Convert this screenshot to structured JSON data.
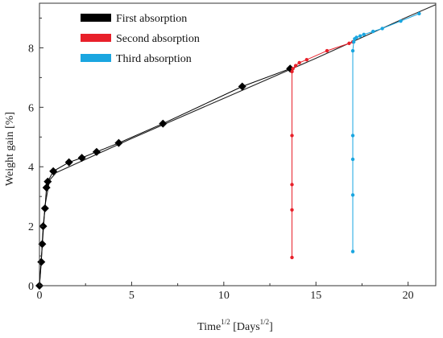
{
  "chart_data": {
    "type": "scatter",
    "title": "",
    "xlabel": {
      "main": "Time",
      "sup": "1/2",
      "bracket_open": " [Days",
      "bracket_sup": "1/2",
      "bracket_close": "]"
    },
    "ylabel": "Weight gain [%]",
    "xlim": [
      0,
      21.5
    ],
    "ylim": [
      0,
      9.5
    ],
    "xticks": [
      "0",
      "5",
      "10",
      "15",
      "20"
    ],
    "yticks": [
      "0",
      "2",
      "4",
      "6",
      "8"
    ],
    "grid": false,
    "legend_position": "top-left",
    "colors": {
      "first": "#000000",
      "second": "#e8202a",
      "third": "#1aa6e0",
      "fit": "#222222"
    },
    "fit_line": {
      "x": [
        0,
        0.3,
        0.55,
        0.9,
        5,
        10,
        15,
        20,
        21.5
      ],
      "y": [
        0,
        2.7,
        3.55,
        3.8,
        4.95,
        6.3,
        7.65,
        9.05,
        9.45
      ]
    },
    "series": [
      {
        "name": "First absorption",
        "marker": "diamond",
        "x": [
          0,
          0.1,
          0.15,
          0.2,
          0.3,
          0.38,
          0.45,
          0.75,
          1.6,
          2.3,
          3.1,
          4.3,
          6.7,
          11.0,
          13.6
        ],
        "y": [
          0,
          0.8,
          1.4,
          2.0,
          2.6,
          3.3,
          3.5,
          3.85,
          4.15,
          4.3,
          4.5,
          4.8,
          5.45,
          6.7,
          7.3
        ]
      },
      {
        "name": "Second absorption",
        "marker": "circle",
        "x": [
          13.7,
          13.7,
          13.7,
          13.7,
          13.7,
          13.75,
          13.9,
          14.1,
          14.5,
          15.6,
          16.8,
          17.0
        ],
        "y": [
          0.95,
          2.55,
          3.4,
          5.05,
          7.2,
          7.3,
          7.4,
          7.5,
          7.6,
          7.9,
          8.15,
          8.2
        ]
      },
      {
        "name": "Third absorption",
        "marker": "circle",
        "x": [
          17.0,
          17.0,
          17.0,
          17.0,
          17.0,
          17.05,
          17.1,
          17.2,
          17.4,
          17.6,
          18.1,
          18.6,
          19.6,
          20.6
        ],
        "y": [
          1.15,
          3.05,
          4.25,
          5.05,
          7.9,
          8.2,
          8.3,
          8.35,
          8.4,
          8.45,
          8.55,
          8.65,
          8.9,
          9.15
        ]
      }
    ]
  }
}
